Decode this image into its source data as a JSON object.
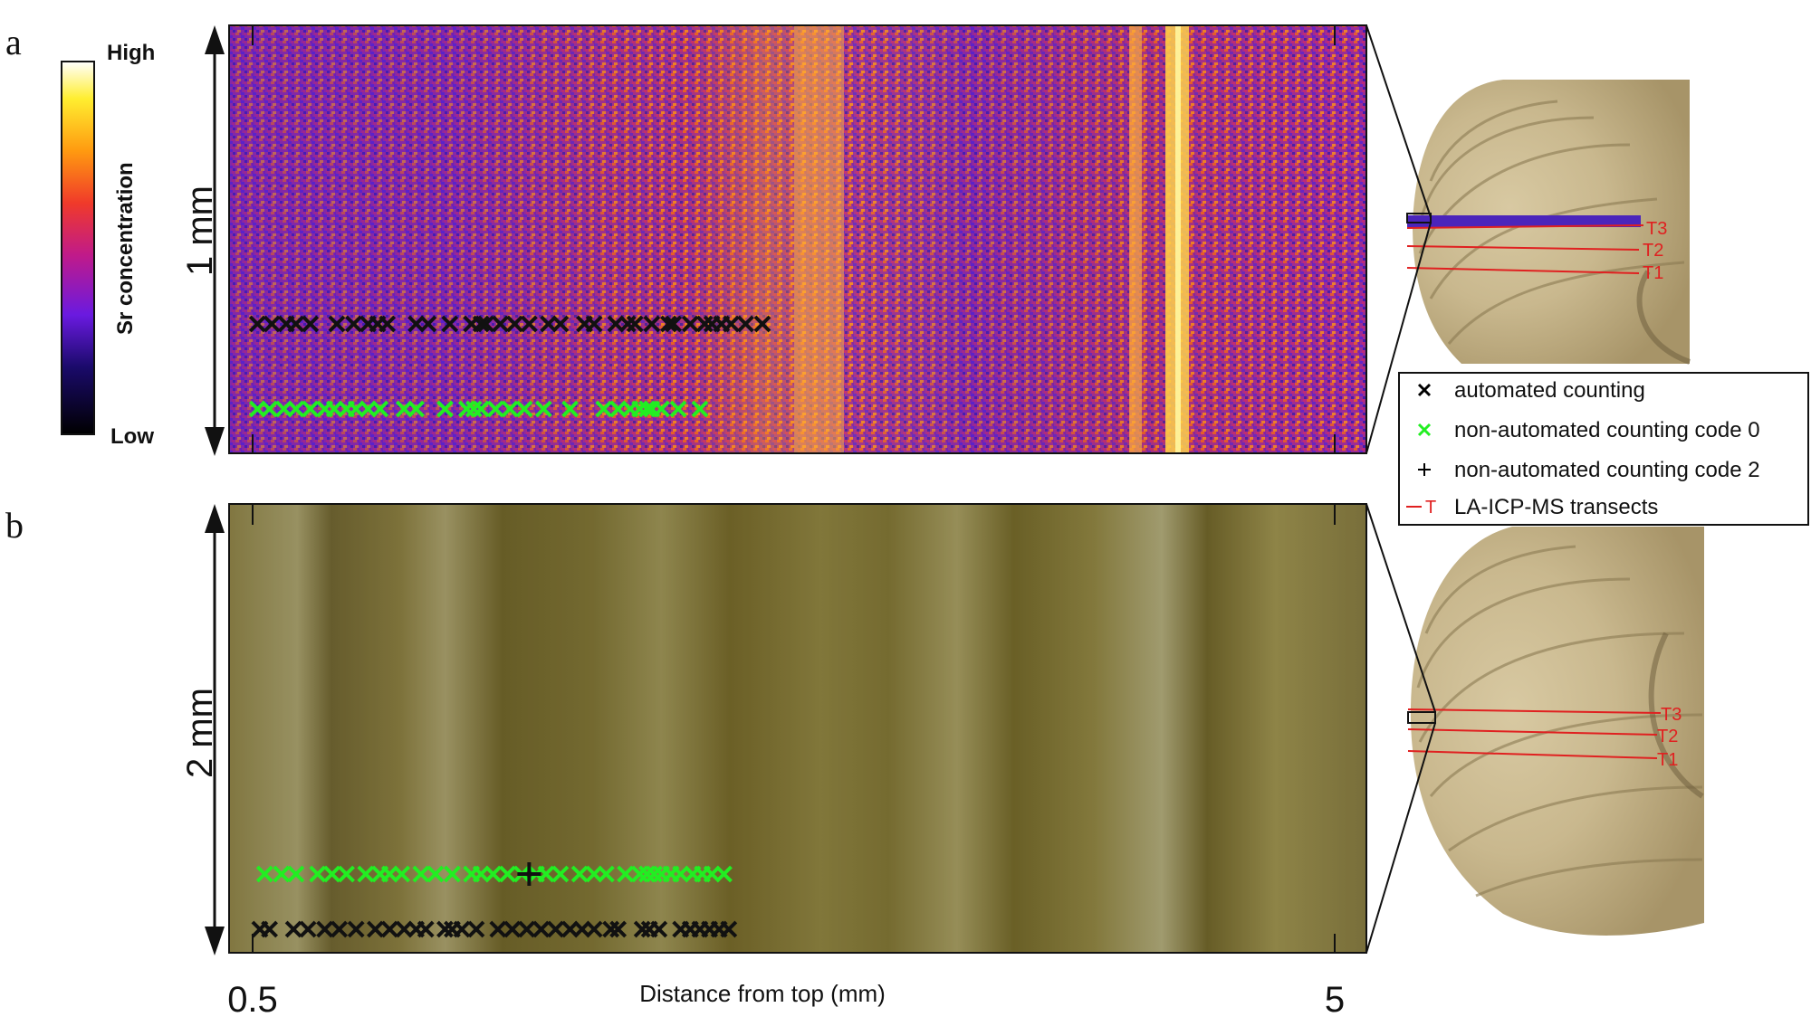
{
  "panels": {
    "a": "a",
    "b": "b"
  },
  "colorbar": {
    "title": "Sr concentration",
    "high": "High",
    "low": "Low"
  },
  "scale_a": "1 mm",
  "scale_b": "2 mm",
  "x_axis": {
    "label": "Distance from top (mm)",
    "ticks": [
      "0.5",
      "5"
    ]
  },
  "legend": [
    {
      "label": "automated counting",
      "marker": "x",
      "color": "#000000"
    },
    {
      "label": "non-automated counting code 0",
      "marker": "x",
      "color": "#22ee22"
    },
    {
      "label": "non-automated counting code 2",
      "marker": "+",
      "color": "#000000"
    },
    {
      "label": "LA-ICP-MS transects",
      "marker": "T",
      "color": "#e02020"
    }
  ],
  "transect_labels": [
    "T3",
    "T2",
    "T1"
  ],
  "colors": {
    "code0": "#22ee22",
    "auto": "#111111",
    "transect": "#e02020"
  },
  "markers": {
    "a_auto": [
      0.52,
      0.58,
      0.64,
      0.68,
      0.74,
      0.85,
      0.92,
      0.98,
      1.02,
      1.06,
      1.18,
      1.23,
      1.32,
      1.41,
      1.45,
      1.47,
      1.53,
      1.59,
      1.65,
      1.73,
      1.78,
      1.88,
      1.92,
      2.01,
      2.06,
      2.09,
      2.16,
      2.23,
      2.25,
      2.32,
      2.38,
      2.41,
      2.45,
      2.49,
      2.55,
      2.62
    ],
    "a_code0": [
      0.52,
      0.57,
      0.63,
      0.68,
      0.74,
      0.8,
      0.84,
      0.89,
      0.93,
      0.98,
      1.03,
      1.13,
      1.18,
      1.3,
      1.39,
      1.42,
      1.45,
      1.51,
      1.57,
      1.63,
      1.71,
      1.82,
      1.96,
      2.02,
      2.07,
      2.11,
      2.14,
      2.16,
      2.2,
      2.27,
      2.36
    ],
    "b_auto": [
      0.53,
      0.57,
      0.67,
      0.73,
      0.8,
      0.86,
      0.93,
      1.01,
      1.07,
      1.13,
      1.18,
      1.22,
      1.3,
      1.33,
      1.37,
      1.43,
      1.52,
      1.58,
      1.64,
      1.7,
      1.76,
      1.82,
      1.87,
      1.92,
      1.99,
      2.02,
      2.12,
      2.15,
      2.19,
      2.28,
      2.32,
      2.36,
      2.4,
      2.44,
      2.48
    ],
    "b_code0": [
      0.55,
      0.62,
      0.68,
      0.77,
      0.83,
      0.89,
      0.97,
      1.03,
      1.07,
      1.12,
      1.2,
      1.26,
      1.33,
      1.41,
      1.45,
      1.5,
      1.56,
      1.62,
      1.68,
      1.72,
      1.78,
      1.86,
      1.92,
      1.97,
      2.05,
      2.11,
      2.14,
      2.17,
      2.2,
      2.24,
      2.28,
      2.33,
      2.37,
      2.41,
      2.46
    ],
    "b_code2": [
      1.65
    ]
  }
}
